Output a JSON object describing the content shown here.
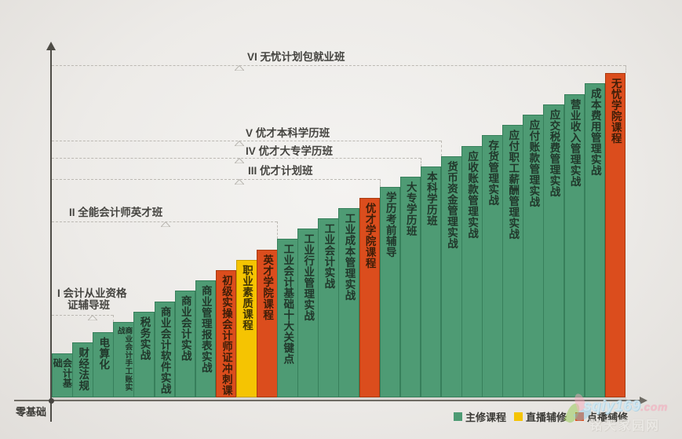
{
  "chart_data": {
    "type": "bar",
    "layout": "ascending-staircase",
    "legend_position": "bottom-right",
    "origin_label": "零基础",
    "courses": [
      {
        "name": "会计基础",
        "kind": "main"
      },
      {
        "name": "财经法规",
        "kind": "main"
      },
      {
        "name": "电算化",
        "kind": "main"
      },
      {
        "name": "商业会计手工账实战",
        "kind": "main"
      },
      {
        "name": "税务实战",
        "kind": "main"
      },
      {
        "name": "商业会计软件实战",
        "kind": "main"
      },
      {
        "name": "商业会计实战",
        "kind": "main"
      },
      {
        "name": "商业管理报表实战",
        "kind": "main"
      },
      {
        "name": "初级实操会计师证冲刺课",
        "kind": "vod"
      },
      {
        "name": "职业素质课程",
        "kind": "live"
      },
      {
        "name": "英才学院课程",
        "kind": "vod"
      },
      {
        "name": "工业会计基础十大关键点",
        "kind": "main"
      },
      {
        "name": "工业行业管理实战",
        "kind": "main"
      },
      {
        "name": "工业会计实战",
        "kind": "main"
      },
      {
        "name": "工业成本管理实战",
        "kind": "main"
      },
      {
        "name": "优才学院课程",
        "kind": "vod"
      },
      {
        "name": "学历考前辅导",
        "kind": "main"
      },
      {
        "name": "大专学历班",
        "kind": "main"
      },
      {
        "name": "本科学历班",
        "kind": "main"
      },
      {
        "name": "货币资金管理实战",
        "kind": "main"
      },
      {
        "name": "应收账款管理实战",
        "kind": "main"
      },
      {
        "name": "存货管理实战",
        "kind": "main"
      },
      {
        "name": "应付职工薪酬管理实战",
        "kind": "main"
      },
      {
        "name": "应付账款管理实战",
        "kind": "main"
      },
      {
        "name": "应交税费管理实战",
        "kind": "main"
      },
      {
        "name": "营业收入管理实战",
        "kind": "main"
      },
      {
        "name": "成本费用管理实战",
        "kind": "main"
      },
      {
        "name": "无忧学院课程",
        "kind": "vod"
      }
    ],
    "levels": [
      {
        "label_lines": [
          "I 会计从业资格",
          "证辅导班"
        ],
        "after_course": 3
      },
      {
        "label_lines": [
          "II 全能会计师英才班"
        ],
        "after_course": 11
      },
      {
        "label_lines": [
          "III 优才计划班"
        ],
        "after_course": 16
      },
      {
        "label_lines": [
          "IV 优才大专学历班"
        ],
        "after_course": 18
      },
      {
        "label_lines": [
          "V 优才本科学历班"
        ],
        "after_course": 19
      },
      {
        "label_lines": [
          "VI 无忧计划包就业班"
        ],
        "after_course": 28
      }
    ],
    "legend": [
      {
        "label": "主修课程",
        "kind": "main"
      },
      {
        "label": "直播辅修",
        "kind": "live"
      },
      {
        "label": "点播辅修",
        "kind": "vod"
      }
    ],
    "colors": {
      "main": "#4E9B74",
      "live": "#F5C402",
      "vod": "#DB4D1D"
    }
  },
  "watermark": {
    "brand": "sqiy169",
    "tld": ".com",
    "line2": "铭天家园网"
  }
}
